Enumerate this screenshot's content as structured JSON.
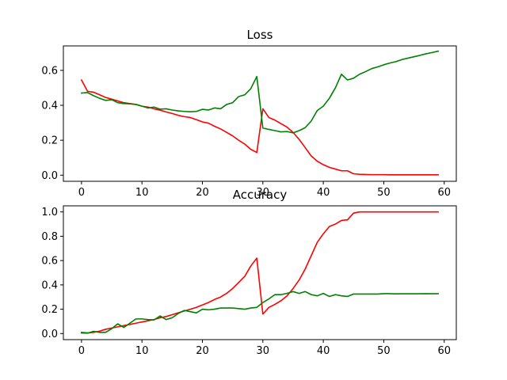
{
  "chart_data": [
    {
      "type": "line",
      "title": "Loss",
      "xlim": [
        -3,
        62
      ],
      "ylim": [
        -0.035,
        0.74
      ],
      "xticks": [
        0,
        10,
        20,
        30,
        40,
        50,
        60
      ],
      "yticks": [
        0.0,
        0.2,
        0.4,
        0.6
      ],
      "ytick_labels": [
        "0.0",
        "0.2",
        "0.4",
        "0.6"
      ],
      "grid": false,
      "x": [
        0,
        1,
        2,
        3,
        4,
        5,
        6,
        7,
        8,
        9,
        10,
        11,
        12,
        13,
        14,
        15,
        16,
        17,
        18,
        19,
        20,
        21,
        22,
        23,
        24,
        25,
        26,
        27,
        28,
        29,
        30,
        31,
        32,
        33,
        34,
        35,
        36,
        37,
        38,
        39,
        40,
        41,
        42,
        43,
        44,
        45,
        46,
        47,
        48,
        49,
        50,
        51,
        52,
        53,
        54,
        55,
        56,
        57,
        58,
        59
      ],
      "series": [
        {
          "color": "#ff0000",
          "values": [
            0.545,
            0.48,
            0.475,
            0.46,
            0.445,
            0.435,
            0.425,
            0.415,
            0.41,
            0.405,
            0.395,
            0.39,
            0.38,
            0.372,
            0.362,
            0.353,
            0.343,
            0.335,
            0.33,
            0.318,
            0.305,
            0.298,
            0.28,
            0.265,
            0.245,
            0.225,
            0.2,
            0.178,
            0.148,
            0.13,
            0.38,
            0.33,
            0.315,
            0.295,
            0.275,
            0.245,
            0.205,
            0.158,
            0.11,
            0.08,
            0.06,
            0.045,
            0.035,
            0.025,
            0.025,
            0.008,
            0.005,
            0.004,
            0.003,
            0.003,
            0.003,
            0.002,
            0.002,
            0.002,
            0.002,
            0.002,
            0.002,
            0.002,
            0.002,
            0.002
          ]
        },
        {
          "color": "#008000",
          "values": [
            0.47,
            0.473,
            0.455,
            0.44,
            0.428,
            0.432,
            0.415,
            0.41,
            0.408,
            0.405,
            0.395,
            0.385,
            0.39,
            0.378,
            0.38,
            0.373,
            0.368,
            0.365,
            0.363,
            0.365,
            0.377,
            0.373,
            0.385,
            0.38,
            0.405,
            0.415,
            0.45,
            0.46,
            0.495,
            0.565,
            0.27,
            0.262,
            0.255,
            0.248,
            0.25,
            0.242,
            0.255,
            0.272,
            0.31,
            0.37,
            0.395,
            0.44,
            0.5,
            0.578,
            0.545,
            0.555,
            0.578,
            0.593,
            0.61,
            0.62,
            0.632,
            0.642,
            0.65,
            0.662,
            0.67,
            0.678,
            0.686,
            0.695,
            0.702,
            0.71
          ]
        }
      ]
    },
    {
      "type": "line",
      "title": "Accuracy",
      "xlim": [
        -3,
        62
      ],
      "ylim": [
        -0.05,
        1.05
      ],
      "xticks": [
        0,
        10,
        20,
        30,
        40,
        50,
        60
      ],
      "yticks": [
        0.0,
        0.2,
        0.4,
        0.6,
        0.8,
        1.0
      ],
      "ytick_labels": [
        "0.0",
        "0.2",
        "0.4",
        "0.6",
        "0.8",
        "1.0"
      ],
      "grid": false,
      "x": [
        0,
        1,
        2,
        3,
        4,
        5,
        6,
        7,
        8,
        9,
        10,
        11,
        12,
        13,
        14,
        15,
        16,
        17,
        18,
        19,
        20,
        21,
        22,
        23,
        24,
        25,
        26,
        27,
        28,
        29,
        30,
        31,
        32,
        33,
        34,
        35,
        36,
        37,
        38,
        39,
        40,
        41,
        42,
        43,
        44,
        45,
        46,
        47,
        48,
        49,
        50,
        51,
        52,
        53,
        54,
        55,
        56,
        57,
        58,
        59
      ],
      "series": [
        {
          "color": "#ff0000",
          "values": [
            0.01,
            0.005,
            0.01,
            0.02,
            0.035,
            0.045,
            0.055,
            0.065,
            0.075,
            0.085,
            0.095,
            0.105,
            0.115,
            0.13,
            0.14,
            0.155,
            0.17,
            0.185,
            0.2,
            0.215,
            0.235,
            0.255,
            0.28,
            0.3,
            0.33,
            0.37,
            0.42,
            0.47,
            0.555,
            0.62,
            0.16,
            0.215,
            0.24,
            0.27,
            0.31,
            0.37,
            0.44,
            0.53,
            0.64,
            0.75,
            0.82,
            0.88,
            0.9,
            0.93,
            0.935,
            0.99,
            1.0,
            1.0,
            1.0,
            1.0,
            1.0,
            1.0,
            1.0,
            1.0,
            1.0,
            1.0,
            1.0,
            1.0,
            1.0,
            1.0
          ]
        },
        {
          "color": "#008000",
          "values": [
            0.005,
            0.003,
            0.018,
            0.01,
            0.01,
            0.04,
            0.08,
            0.05,
            0.085,
            0.12,
            0.12,
            0.115,
            0.112,
            0.145,
            0.115,
            0.13,
            0.165,
            0.19,
            0.18,
            0.17,
            0.2,
            0.195,
            0.2,
            0.21,
            0.21,
            0.21,
            0.205,
            0.2,
            0.21,
            0.215,
            0.255,
            0.285,
            0.32,
            0.32,
            0.33,
            0.345,
            0.33,
            0.345,
            0.32,
            0.31,
            0.33,
            0.305,
            0.32,
            0.31,
            0.305,
            0.325,
            0.325,
            0.325,
            0.325,
            0.325,
            0.328,
            0.328,
            0.326,
            0.327,
            0.327,
            0.327,
            0.327,
            0.328,
            0.327,
            0.328
          ]
        }
      ]
    }
  ]
}
